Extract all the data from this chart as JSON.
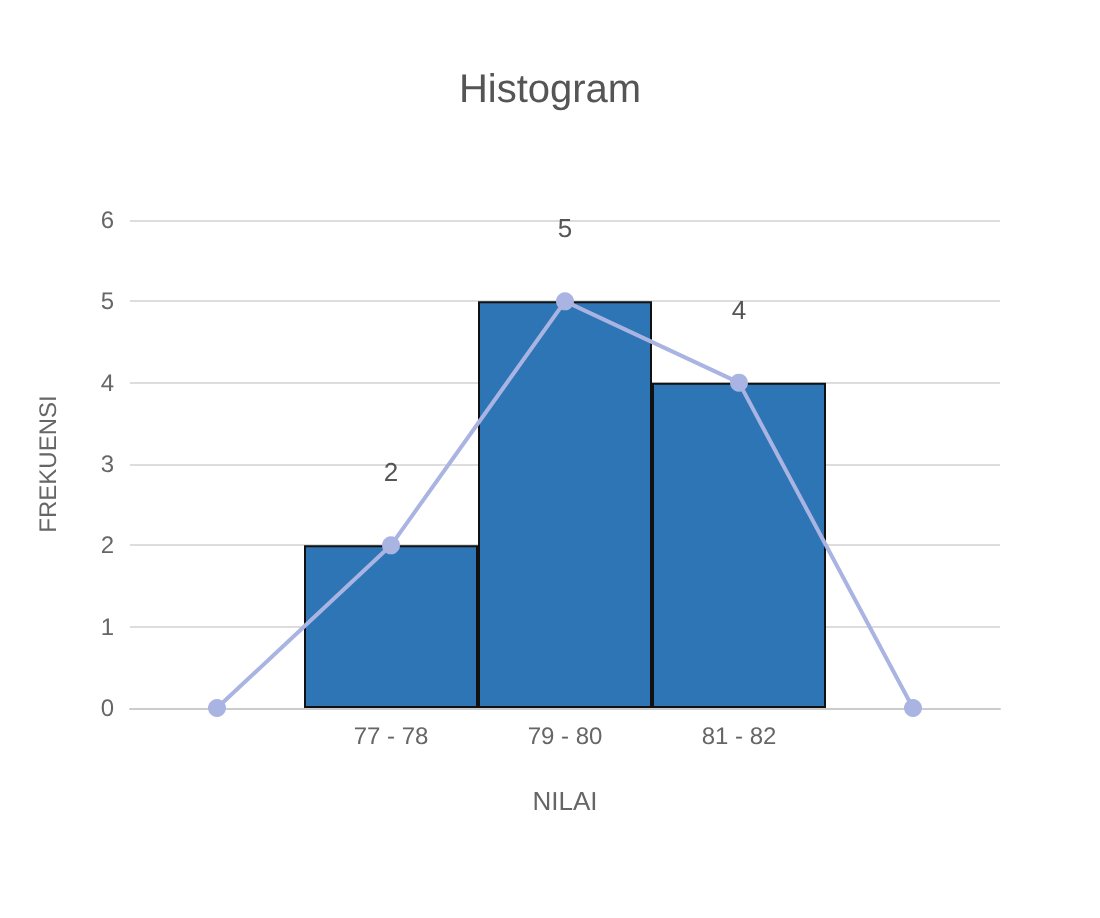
{
  "chart_data": {
    "type": "bar",
    "title": "Histogram",
    "xlabel": "NILAI",
    "ylabel": "FREKUENSI",
    "categories": [
      null,
      "77 - 78",
      "79 - 80",
      "81 - 82",
      null
    ],
    "series": [
      {
        "color": "#2e75b6",
        "values": [
          null,
          2,
          5,
          4,
          null
        ],
        "value_labels": [
          null,
          "2",
          "5",
          "4",
          null
        ]
      },
      {
        "type": "line",
        "color": "#aab4e2",
        "values": [
          0,
          2,
          5,
          4,
          0
        ],
        "marker": "circle"
      }
    ],
    "ylim": [
      0,
      6
    ],
    "yticks": [
      0,
      1,
      2,
      3,
      4,
      5,
      6
    ],
    "grid": "y"
  }
}
